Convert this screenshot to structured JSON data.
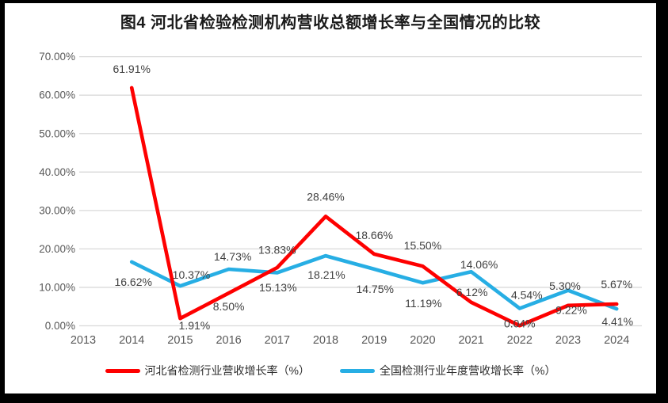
{
  "title": "图4  河北省检验检测机构营收总额增长率与全国情况的比较",
  "chart_data": {
    "type": "line",
    "title": "图4  河北省检验检测机构营收总额增长率与全国情况的比较",
    "categories": [
      "2013",
      "2014",
      "2015",
      "2016",
      "2017",
      "2018",
      "2019",
      "2020",
      "2021",
      "2022",
      "2023",
      "2024"
    ],
    "series": [
      {
        "name": "河北省检测行业营收增长率（%）",
        "color": "#fe0000",
        "values": [
          null,
          61.91,
          1.91,
          8.5,
          15.13,
          28.46,
          18.66,
          15.5,
          6.12,
          0.04,
          5.3,
          5.67
        ]
      },
      {
        "name": "全国检测行业年度营收增长率（%）",
        "color": "#27aee4",
        "values": [
          null,
          16.62,
          10.37,
          14.73,
          13.83,
          18.21,
          14.75,
          11.19,
          14.06,
          4.54,
          9.22,
          4.41
        ]
      }
    ],
    "xlabel": "",
    "ylabel": "",
    "ylim": [
      0,
      70
    ],
    "y_ticks": [
      "0.00%",
      "10.00%",
      "20.00%",
      "30.00%",
      "40.00%",
      "50.00%",
      "60.00%",
      "70.00%"
    ],
    "grid": true,
    "legend_position": "bottom",
    "data_labels_shown": true,
    "colors": {
      "gridline": "#d9d9d9",
      "axis_text": "#595959",
      "data_label_text": "#3f3f3f",
      "background": "#ffffff",
      "frame": "#000000"
    }
  }
}
